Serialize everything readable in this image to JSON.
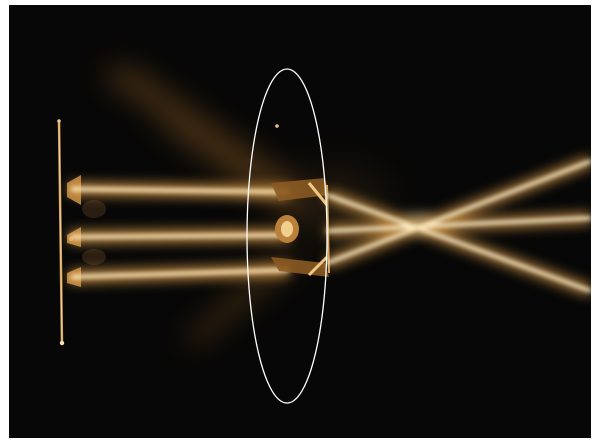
{
  "image": {
    "subject": "light-rays-through-lens-photograph",
    "colors": {
      "background": "#070707",
      "beam_core": "#fff6dc",
      "beam_glow": "#e7a64d",
      "beam_warm": "#c9802b",
      "lens_outline": "#ffffff"
    },
    "beams": {
      "incoming_count": 3,
      "outgoing_count": 3
    }
  }
}
